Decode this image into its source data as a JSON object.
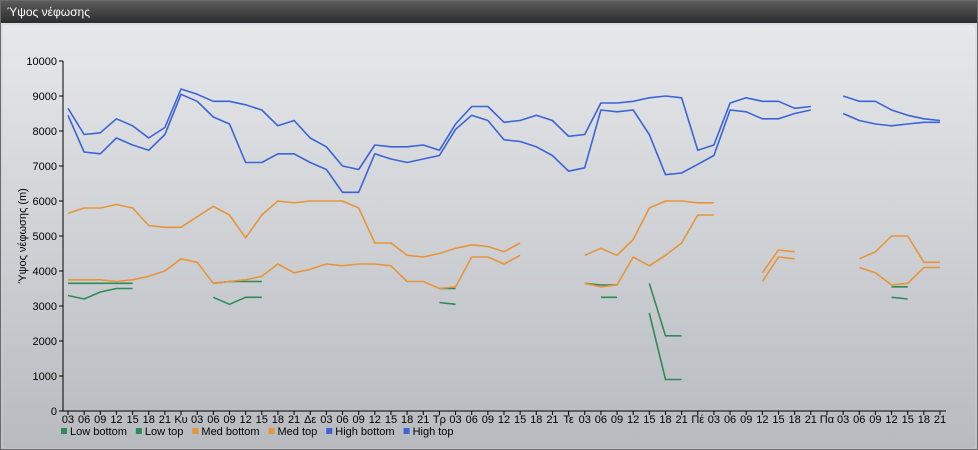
{
  "window": {
    "title": "Ύψος νέφωσης"
  },
  "chart_data": {
    "type": "line",
    "title": "",
    "ylabel": "Ύψος νέφωσης (m)",
    "xlabel": "",
    "ylim": [
      0,
      10000
    ],
    "yticks": [
      0,
      1000,
      2000,
      3000,
      4000,
      5000,
      6000,
      7000,
      8000,
      9000,
      10000
    ],
    "grid": false,
    "legend_position": "bottom-left",
    "x": [
      "03",
      "06",
      "09",
      "12",
      "15",
      "18",
      "21",
      "Κυ",
      "03",
      "06",
      "09",
      "12",
      "15",
      "18",
      "21",
      "Δε",
      "03",
      "06",
      "09",
      "12",
      "15",
      "18",
      "21",
      "Τρ",
      "03",
      "06",
      "09",
      "12",
      "15",
      "18",
      "21",
      "Τε",
      "03",
      "06",
      "09",
      "12",
      "15",
      "18",
      "21",
      "Πέ",
      "03",
      "06",
      "09",
      "12",
      "15",
      "18",
      "21",
      "Πα",
      "03",
      "06",
      "09",
      "12",
      "15",
      "18",
      "21"
    ],
    "series": [
      {
        "name": "Low bottom",
        "color": "#2e8b57",
        "values": [
          3300,
          3200,
          3400,
          3500,
          3500,
          null,
          null,
          null,
          null,
          3250,
          3050,
          3250,
          3250,
          null,
          null,
          null,
          null,
          null,
          null,
          null,
          null,
          null,
          null,
          3100,
          3050,
          null,
          null,
          null,
          null,
          null,
          null,
          null,
          null,
          3250,
          3250,
          null,
          2800,
          900,
          900,
          null,
          null,
          null,
          null,
          null,
          null,
          null,
          null,
          null,
          null,
          null,
          null,
          3250,
          3200,
          null,
          null
        ]
      },
      {
        "name": "Low top",
        "color": "#2e8b57",
        "values": [
          3650,
          3650,
          3650,
          3650,
          3650,
          null,
          null,
          null,
          null,
          3650,
          3700,
          3700,
          3700,
          null,
          null,
          null,
          null,
          null,
          null,
          null,
          null,
          null,
          null,
          3500,
          3500,
          null,
          null,
          null,
          null,
          null,
          null,
          null,
          3650,
          3600,
          3600,
          null,
          3650,
          2150,
          2150,
          null,
          null,
          null,
          null,
          null,
          null,
          null,
          null,
          null,
          null,
          null,
          null,
          3550,
          3550,
          null,
          null
        ]
      },
      {
        "name": "Med bottom",
        "color": "#e8953a",
        "values": [
          3750,
          3750,
          3750,
          3700,
          3750,
          3850,
          4000,
          4350,
          4250,
          3650,
          3700,
          3750,
          3850,
          4200,
          3950,
          4050,
          4200,
          4150,
          4200,
          4200,
          4150,
          3700,
          3700,
          3500,
          3550,
          4400,
          4400,
          4200,
          4450,
          null,
          null,
          null,
          3650,
          3550,
          3600,
          4400,
          4150,
          4450,
          4800,
          5600,
          5600,
          null,
          null,
          3700,
          4400,
          4350,
          null,
          null,
          null,
          4100,
          3950,
          3600,
          3650,
          4100,
          4100
        ]
      },
      {
        "name": "Med top",
        "color": "#e8953a",
        "values": [
          5650,
          5800,
          5800,
          5900,
          5800,
          5300,
          5250,
          5250,
          5550,
          5850,
          5600,
          4950,
          5600,
          6000,
          5950,
          6000,
          6000,
          6000,
          5800,
          4800,
          4800,
          4450,
          4400,
          4500,
          4650,
          4750,
          4700,
          4550,
          4800,
          null,
          null,
          null,
          4450,
          4650,
          4450,
          4900,
          5800,
          6000,
          6000,
          5950,
          5950,
          null,
          null,
          3950,
          4600,
          4550,
          null,
          null,
          null,
          4350,
          4550,
          5000,
          5000,
          4250,
          4250
        ]
      },
      {
        "name": "High bottom",
        "color": "#3b64d8",
        "values": [
          8450,
          7400,
          7350,
          7800,
          7600,
          7450,
          7900,
          9050,
          8850,
          8400,
          8200,
          7100,
          7100,
          7350,
          7350,
          7100,
          6900,
          6250,
          6250,
          7350,
          7200,
          7100,
          7200,
          7300,
          8050,
          8450,
          8300,
          7750,
          7700,
          7550,
          7300,
          6850,
          6950,
          8600,
          8550,
          8600,
          7900,
          6750,
          6800,
          7050,
          7300,
          8600,
          8550,
          8350,
          8350,
          8500,
          8600,
          null,
          8500,
          8300,
          8200,
          8150,
          8200,
          8250,
          8250
        ]
      },
      {
        "name": "High top",
        "color": "#3b64d8",
        "values": [
          8650,
          7900,
          7950,
          8350,
          8150,
          7800,
          8100,
          9200,
          9050,
          8850,
          8850,
          8750,
          8600,
          8150,
          8300,
          7800,
          7550,
          7000,
          6900,
          7600,
          7550,
          7550,
          7600,
          7450,
          8200,
          8700,
          8700,
          8250,
          8300,
          8450,
          8300,
          7850,
          7900,
          8800,
          8800,
          8850,
          8950,
          9000,
          8950,
          7450,
          7600,
          8800,
          8950,
          8850,
          8850,
          8650,
          8700,
          null,
          9000,
          8850,
          8850,
          8600,
          8450,
          8350,
          8300
        ]
      }
    ]
  }
}
